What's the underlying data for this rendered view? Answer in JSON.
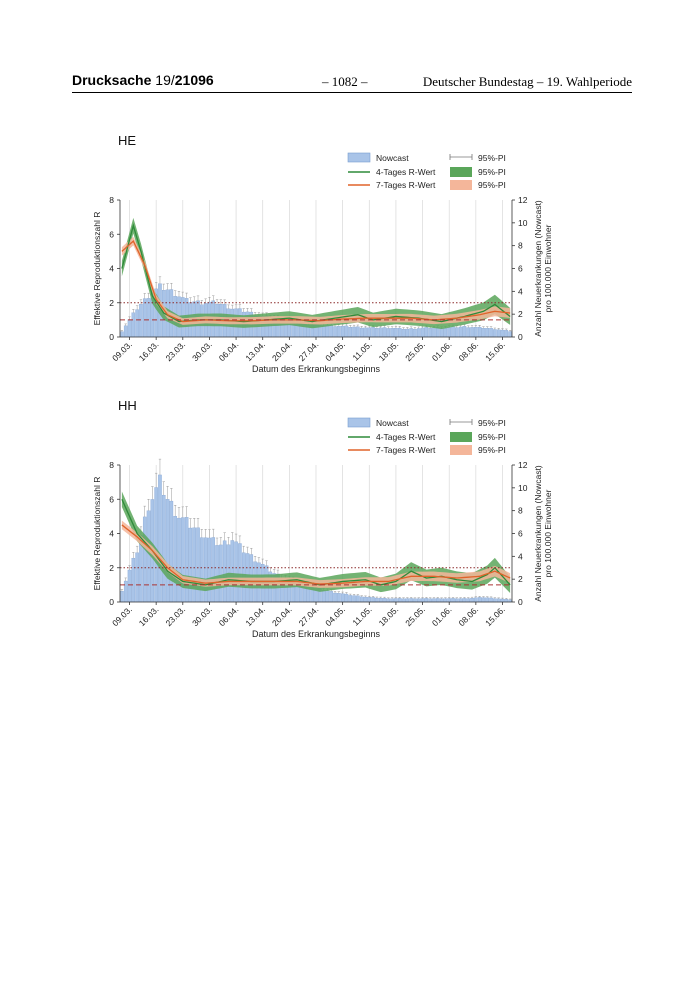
{
  "header": {
    "doc_prefix": "Drucksache",
    "doc_number_light": "19/",
    "doc_number_bold": "21096",
    "page_number": "– 1082 –",
    "right_text": "Deutscher Bundestag – 19. Wahlperiode"
  },
  "colors": {
    "bar": "#a9c4e8",
    "bar_edge": "#7a9dd0",
    "green_line": "#2e8b3a",
    "green_band": "#5aa65a",
    "orange_line": "#e0632a",
    "orange_band": "#f4b69a",
    "dotted_line": "#8b2c2c",
    "dashed_line": "#a33"
  },
  "chart_data": [
    {
      "type": "bar+line",
      "title": "HE",
      "xlabel": "Datum des Erkrankungsbeginns",
      "ylabel_left": "Effektive Reproduktionszahl R",
      "ylabel_right": "Anzahl Neuerkrankungen (Nowcast) pro 100.000 Einwohner",
      "ylim_left": [
        0,
        8
      ],
      "ylim_right": [
        0,
        12
      ],
      "yticks_left": [
        "0",
        "2",
        "4",
        "6",
        "8"
      ],
      "yticks_right": [
        "0",
        "2",
        "4",
        "6",
        "8",
        "10",
        "12"
      ],
      "xtick_labels": [
        "09.03.",
        "16.03.",
        "23.03.",
        "30.03.",
        "06.04.",
        "13.04.",
        "20.04.",
        "27.04.",
        "04.05.",
        "11.05.",
        "18.05.",
        "25.05.",
        "01.06.",
        "08.06.",
        "15.06."
      ],
      "legend": [
        "Nowcast",
        "4-Tages R-Wert",
        "7-Tages R-Wert",
        "95%-PI",
        "95%-PI",
        "95%-PI"
      ],
      "reference_lines": {
        "dotted_R": 2,
        "dashed_R": 1
      },
      "nowcast_anchors": [
        [
          0,
          0.5
        ],
        [
          4,
          2.5
        ],
        [
          7,
          3.6
        ],
        [
          10,
          4.4
        ],
        [
          13,
          4.0
        ],
        [
          17,
          3.2
        ],
        [
          21,
          3.0
        ],
        [
          25,
          3.0
        ],
        [
          29,
          2.5
        ],
        [
          33,
          2.2
        ],
        [
          37,
          1.8
        ],
        [
          41,
          1.6
        ],
        [
          45,
          1.3
        ],
        [
          50,
          1.1
        ],
        [
          55,
          1.0
        ],
        [
          60,
          0.9
        ],
        [
          65,
          0.8
        ],
        [
          70,
          0.8
        ],
        [
          75,
          0.7
        ],
        [
          80,
          0.8
        ],
        [
          85,
          0.8
        ],
        [
          90,
          0.9
        ],
        [
          95,
          0.8
        ],
        [
          98,
          0.7
        ],
        [
          102,
          0.5
        ]
      ],
      "r4_anchors": [
        [
          0,
          4.0
        ],
        [
          3,
          6.5
        ],
        [
          5,
          5.0
        ],
        [
          8,
          2.4
        ],
        [
          11,
          1.4
        ],
        [
          15,
          0.9
        ],
        [
          20,
          1.0
        ],
        [
          26,
          1.0
        ],
        [
          32,
          0.9
        ],
        [
          38,
          1.0
        ],
        [
          44,
          1.1
        ],
        [
          50,
          0.9
        ],
        [
          56,
          1.1
        ],
        [
          62,
          1.3
        ],
        [
          66,
          1.0
        ],
        [
          72,
          1.2
        ],
        [
          78,
          1.1
        ],
        [
          84,
          0.9
        ],
        [
          90,
          1.2
        ],
        [
          95,
          1.5
        ],
        [
          98,
          1.9
        ],
        [
          102,
          1.2
        ]
      ],
      "r7_anchors": [
        [
          0,
          5.0
        ],
        [
          3,
          5.6
        ],
        [
          6,
          4.2
        ],
        [
          9,
          2.2
        ],
        [
          12,
          1.3
        ],
        [
          16,
          0.9
        ],
        [
          22,
          1.0
        ],
        [
          28,
          0.95
        ],
        [
          34,
          0.95
        ],
        [
          40,
          1.0
        ],
        [
          46,
          1.0
        ],
        [
          52,
          0.95
        ],
        [
          58,
          1.05
        ],
        [
          64,
          1.1
        ],
        [
          70,
          1.1
        ],
        [
          76,
          1.1
        ],
        [
          82,
          1.0
        ],
        [
          88,
          1.1
        ],
        [
          94,
          1.3
        ],
        [
          98,
          1.5
        ],
        [
          102,
          1.4
        ]
      ]
    },
    {
      "type": "bar+line",
      "title": "HH",
      "xlabel": "Datum des Erkrankungsbeginns",
      "ylabel_left": "Effektive Reproduktionszahl R",
      "ylabel_right": "Anzahl Neuerkrankungen (Nowcast) pro 100.000 Einwohner",
      "ylim_left": [
        0,
        8
      ],
      "ylim_right": [
        0,
        12
      ],
      "yticks_left": [
        "0",
        "2",
        "4",
        "6",
        "8"
      ],
      "yticks_right": [
        "0",
        "2",
        "4",
        "6",
        "8",
        "10",
        "12"
      ],
      "xtick_labels": [
        "09.03.",
        "16.03.",
        "23.03.",
        "30.03.",
        "06.04.",
        "13.04.",
        "20.04.",
        "27.04.",
        "04.05.",
        "11.05.",
        "18.05.",
        "25.05.",
        "01.06.",
        "08.06.",
        "15.06."
      ],
      "legend": [
        "Nowcast",
        "4-Tages R-Wert",
        "7-Tages R-Wert",
        "95%-PI",
        "95%-PI",
        "95%-PI"
      ],
      "reference_lines": {
        "dotted_R": 2,
        "dashed_R": 1
      },
      "nowcast_anchors": [
        [
          0,
          1.0
        ],
        [
          4,
          4.5
        ],
        [
          7,
          8.5
        ],
        [
          10,
          10.5
        ],
        [
          12,
          9.0
        ],
        [
          15,
          7.5
        ],
        [
          19,
          6.5
        ],
        [
          23,
          5.5
        ],
        [
          26,
          5.0
        ],
        [
          29,
          5.5
        ],
        [
          32,
          4.5
        ],
        [
          36,
          3.5
        ],
        [
          40,
          2.5
        ],
        [
          45,
          1.8
        ],
        [
          50,
          1.3
        ],
        [
          55,
          0.9
        ],
        [
          60,
          0.6
        ],
        [
          65,
          0.4
        ],
        [
          70,
          0.3
        ],
        [
          80,
          0.3
        ],
        [
          90,
          0.3
        ],
        [
          95,
          0.4
        ],
        [
          102,
          0.2
        ]
      ],
      "r4_anchors": [
        [
          0,
          6.0
        ],
        [
          4,
          4.0
        ],
        [
          8,
          3.0
        ],
        [
          12,
          1.8
        ],
        [
          16,
          1.2
        ],
        [
          22,
          1.0
        ],
        [
          28,
          1.3
        ],
        [
          34,
          1.2
        ],
        [
          40,
          1.2
        ],
        [
          46,
          1.3
        ],
        [
          52,
          1.0
        ],
        [
          58,
          1.2
        ],
        [
          64,
          1.3
        ],
        [
          68,
          1.0
        ],
        [
          72,
          1.2
        ],
        [
          76,
          1.8
        ],
        [
          80,
          1.4
        ],
        [
          84,
          1.5
        ],
        [
          88,
          1.3
        ],
        [
          92,
          1.2
        ],
        [
          96,
          1.6
        ],
        [
          98,
          2.0
        ],
        [
          102,
          1.0
        ]
      ],
      "r7_anchors": [
        [
          0,
          4.5
        ],
        [
          4,
          3.8
        ],
        [
          8,
          3.0
        ],
        [
          12,
          2.0
        ],
        [
          16,
          1.3
        ],
        [
          22,
          1.1
        ],
        [
          28,
          1.2
        ],
        [
          34,
          1.2
        ],
        [
          40,
          1.2
        ],
        [
          46,
          1.2
        ],
        [
          52,
          1.05
        ],
        [
          58,
          1.1
        ],
        [
          64,
          1.2
        ],
        [
          70,
          1.2
        ],
        [
          76,
          1.5
        ],
        [
          82,
          1.5
        ],
        [
          88,
          1.4
        ],
        [
          94,
          1.5
        ],
        [
          98,
          1.8
        ],
        [
          102,
          1.4
        ]
      ]
    }
  ]
}
